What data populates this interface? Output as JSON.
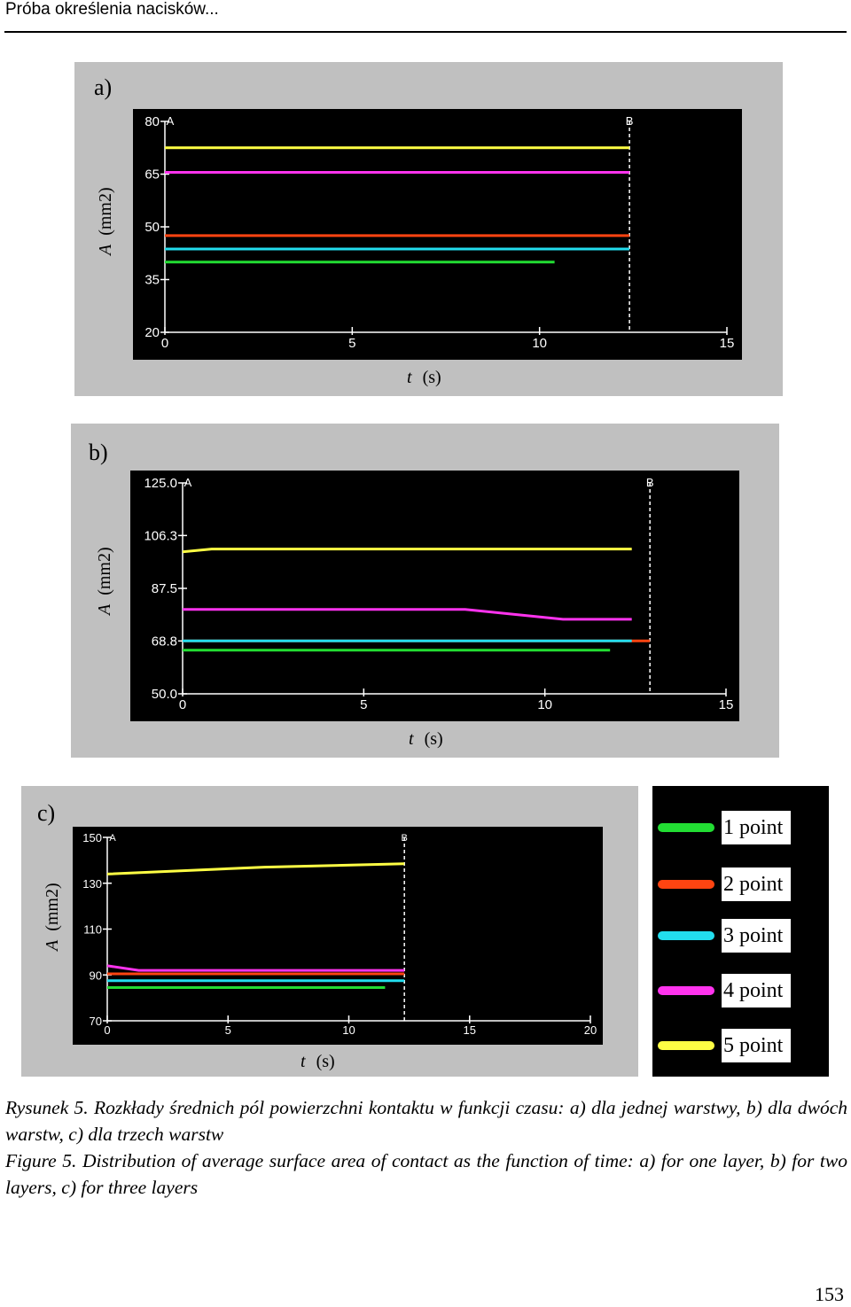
{
  "header": {
    "running_title": "Próba określenia nacisków..."
  },
  "figure": {
    "panels": [
      {
        "label": "a)",
        "ylabel_var": "A",
        "ylabel_unit": "(mm2)",
        "xlabel_var": "t",
        "xlabel_unit": "(s)"
      },
      {
        "label": "b)",
        "ylabel_var": "A",
        "ylabel_unit": "(mm2)",
        "xlabel_var": "t",
        "xlabel_unit": "(s)"
      },
      {
        "label": "c)",
        "ylabel_var": "A",
        "ylabel_unit": "(mm2)",
        "xlabel_var": "t",
        "xlabel_unit": "(s)"
      }
    ],
    "legend": [
      {
        "label": "1 point",
        "color": "#22dd33"
      },
      {
        "label": "2 point",
        "color": "#ff4411"
      },
      {
        "label": "3 point",
        "color": "#22ddee"
      },
      {
        "label": "4 point",
        "color": "#ff33ee"
      },
      {
        "label": "5 point",
        "color": "#ffff44"
      }
    ]
  },
  "chart_data": [
    {
      "type": "line",
      "panel": "a)",
      "xlim": [
        0,
        15
      ],
      "ylim": [
        20,
        80
      ],
      "xticks": [
        "0",
        "5",
        "10",
        "15"
      ],
      "yticks": [
        "20",
        "35",
        "50",
        "65",
        "80"
      ],
      "markers": [
        {
          "label": "A",
          "x": 0
        },
        {
          "label": "B",
          "x": 12.4
        }
      ],
      "series": [
        {
          "name": "1 point",
          "color": "#22dd33",
          "x": [
            0,
            10.4
          ],
          "y": [
            40,
            40
          ]
        },
        {
          "name": "2 point",
          "color": "#ff4411",
          "x": [
            0,
            12.4
          ],
          "y": [
            47.5,
            47.5
          ]
        },
        {
          "name": "3 point",
          "color": "#22ddee",
          "x": [
            0,
            12.4
          ],
          "y": [
            43.7,
            43.7
          ]
        },
        {
          "name": "4 point",
          "color": "#ff33ee",
          "x": [
            0,
            12.4
          ],
          "y": [
            65.5,
            65.5
          ]
        },
        {
          "name": "5 point",
          "color": "#ffff44",
          "x": [
            0,
            12.4
          ],
          "y": [
            72.5,
            72.5
          ]
        }
      ]
    },
    {
      "type": "line",
      "panel": "b)",
      "xlim": [
        0,
        15
      ],
      "ylim": [
        50,
        125
      ],
      "xticks": [
        "0",
        "5",
        "10",
        "15"
      ],
      "yticks": [
        "50.0",
        "68.8",
        "87.5",
        "106.3",
        "125.0"
      ],
      "markers": [
        {
          "label": "A",
          "x": 0
        },
        {
          "label": "B",
          "x": 12.9
        }
      ],
      "series": [
        {
          "name": "1 point",
          "color": "#22dd33",
          "x": [
            0,
            11.8
          ],
          "y": [
            65.5,
            65.5
          ]
        },
        {
          "name": "2 point",
          "color": "#ff4411",
          "x": [
            0,
            12.9
          ],
          "y": [
            68.8,
            68.8
          ]
        },
        {
          "name": "3 point",
          "color": "#22ddee",
          "x": [
            0,
            12.4
          ],
          "y": [
            68.8,
            68.8
          ]
        },
        {
          "name": "4 point",
          "color": "#ff33ee",
          "x": [
            0,
            7.8,
            10.5,
            12.4
          ],
          "y": [
            80,
            80,
            76.5,
            76.5
          ]
        },
        {
          "name": "5 point",
          "color": "#ffff44",
          "x": [
            0,
            0.8,
            12.4
          ],
          "y": [
            100.5,
            101.5,
            101.5
          ]
        }
      ]
    },
    {
      "type": "line",
      "panel": "c)",
      "xlim": [
        0,
        20
      ],
      "ylim": [
        70,
        150
      ],
      "xticks": [
        "0",
        "5",
        "10",
        "15",
        "20"
      ],
      "yticks": [
        "70",
        "90",
        "110",
        "130",
        "150"
      ],
      "markers": [
        {
          "label": "A",
          "x": 0
        },
        {
          "label": "B",
          "x": 12.3
        }
      ],
      "series": [
        {
          "name": "1 point",
          "color": "#22dd33",
          "x": [
            0,
            11.5
          ],
          "y": [
            84.5,
            84.5
          ]
        },
        {
          "name": "2 point",
          "color": "#ff4411",
          "x": [
            0,
            12.3
          ],
          "y": [
            90.5,
            90.5
          ]
        },
        {
          "name": "3 point",
          "color": "#22ddee",
          "x": [
            0,
            12.3
          ],
          "y": [
            87.5,
            87.5
          ]
        },
        {
          "name": "4 point",
          "color": "#ff33ee",
          "x": [
            0,
            1.3,
            12.3
          ],
          "y": [
            94,
            92,
            92
          ]
        },
        {
          "name": "5 point",
          "color": "#ffff44",
          "x": [
            0,
            6.5,
            12.3
          ],
          "y": [
            134,
            137,
            138.5
          ]
        }
      ]
    }
  ],
  "caption": {
    "pl": "Rysunek 5. Rozkłady średnich pól powierzchni kontaktu w funkcji czasu: a) dla jednej warstwy, b) dla dwóch warstw, c) dla trzech warstw",
    "en": "Figure 5. Distribution of average surface area of contact as the function of time: a) for one layer, b) for two layers, c) for three layers"
  },
  "page_number": "153"
}
